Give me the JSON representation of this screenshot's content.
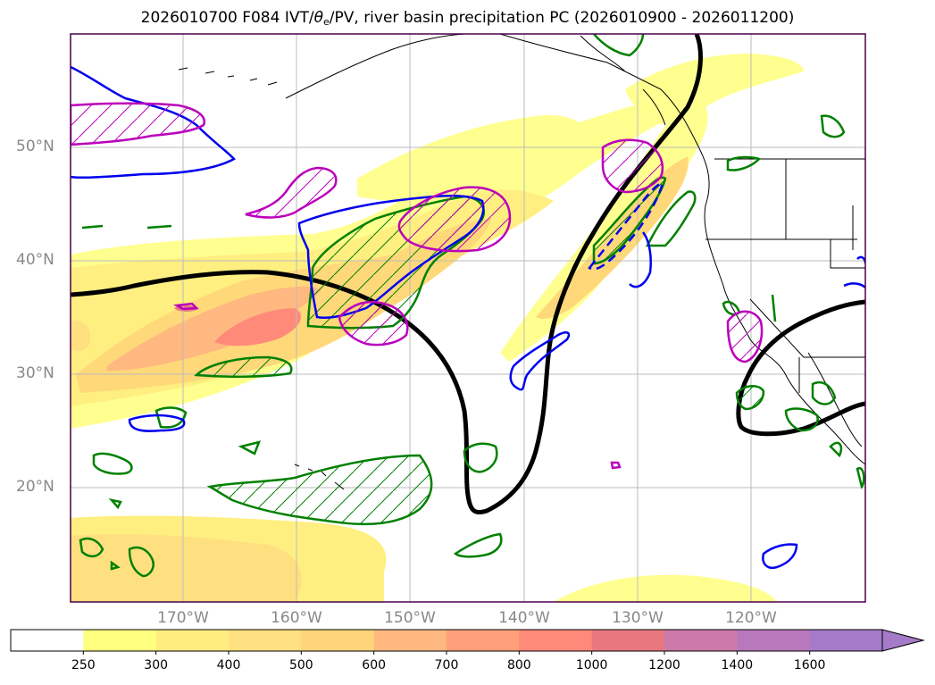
{
  "title": {
    "prefix": "2026010700 F084 IVT/",
    "theta_symbol": "θ",
    "theta_sub": "e",
    "suffix": "/PV, river basin precipitation PC (2026010900 - 2026011200)"
  },
  "axes": {
    "lat_labels": [
      "50°N",
      "40°N",
      "30°N",
      "20°N"
    ],
    "lon_labels": [
      "170°W",
      "160°W",
      "150°W",
      "140°W",
      "130°W",
      "120°W"
    ]
  },
  "colorbar": {
    "ticks": [
      "250",
      "300",
      "400",
      "500",
      "600",
      "700",
      "800",
      "1000",
      "1200",
      "1400",
      "1600"
    ],
    "colors": [
      "#ffffff",
      "#ffff80",
      "#ffed80",
      "#ffe080",
      "#ffd57a",
      "#ffb880",
      "#ffa07a",
      "#ff8a7a",
      "#e87880",
      "#cc7aaa",
      "#b878bb",
      "#a57ac8"
    ]
  },
  "colors": {
    "frame": "#4a004a",
    "coast": "#000000",
    "theta_contour": "#000000",
    "green_contour": "#008000",
    "blue_contour": "#0000ee",
    "magenta_contour": "#bb00bb",
    "grid": "#bbbbbb"
  }
}
